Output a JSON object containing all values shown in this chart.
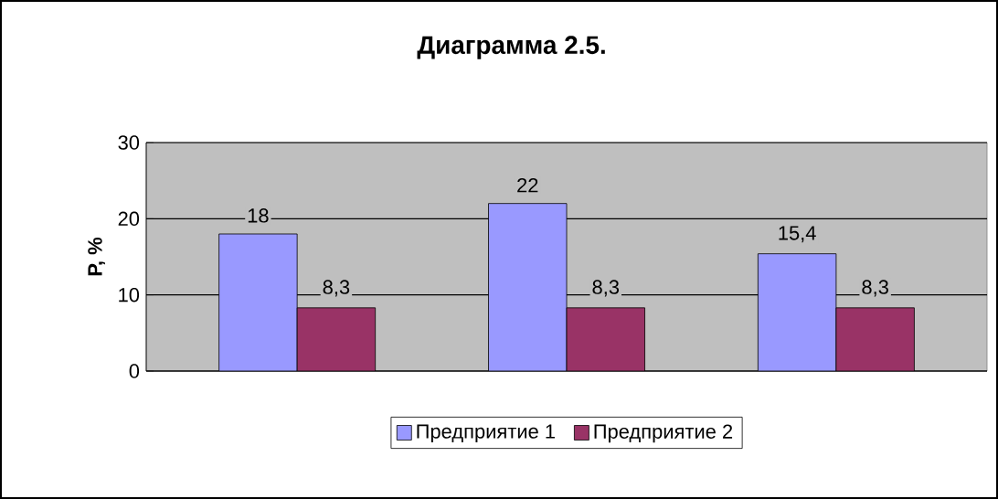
{
  "chart_data": {
    "type": "bar",
    "title": "Диаграмма 2.5.",
    "ylabel": "Р, %",
    "categories": [
      null,
      null,
      null
    ],
    "series": [
      {
        "name": "Предприятие 1",
        "color": "#9999ff",
        "values": [
          18,
          22,
          15.4
        ],
        "value_labels": [
          "18",
          "22",
          "15,4"
        ]
      },
      {
        "name": "Предприятие 2",
        "color": "#993366",
        "values": [
          8.3,
          8.3,
          8.3
        ],
        "value_labels": [
          "8,3",
          "8,3",
          "8,3"
        ]
      }
    ],
    "ylim": [
      0,
      30
    ],
    "yticks": [
      0,
      10,
      20,
      30
    ],
    "grid": "y",
    "legend": "bottom"
  }
}
